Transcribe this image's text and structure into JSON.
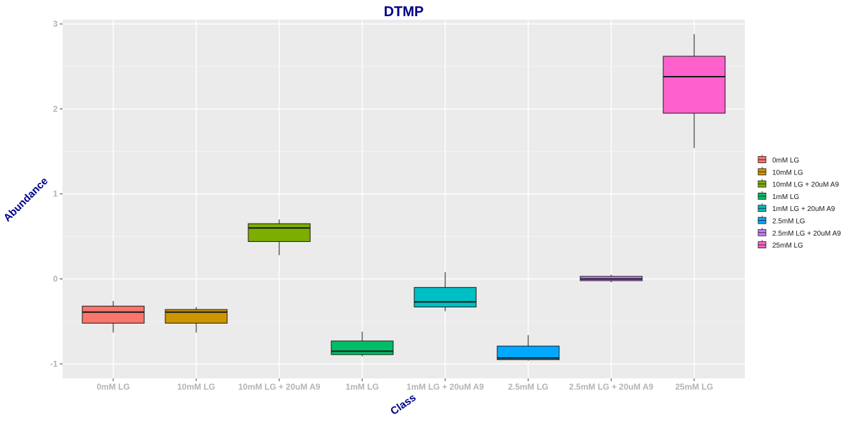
{
  "chart_data": {
    "type": "boxplot",
    "title": "DTMP",
    "xlabel": "Class",
    "ylabel": "Abundance",
    "ylim": [
      -1.17,
      3.05
    ],
    "yticks": [
      -1,
      0,
      1,
      2,
      3
    ],
    "grid": true,
    "legend_position": "right",
    "categories": [
      "0mM LG",
      "10mM LG",
      "10mM LG + 20uM A9",
      "1mM LG",
      "1mM LG + 20uM A9",
      "2.5mM LG",
      "2.5mM LG + 20uM A9",
      "25mM LG"
    ],
    "series": [
      {
        "name": "0mM LG",
        "color": "#F8766D",
        "min": -0.63,
        "q1": -0.52,
        "median": -0.39,
        "q3": -0.32,
        "max": -0.26
      },
      {
        "name": "10mM LG",
        "color": "#CD9600",
        "min": -0.63,
        "q1": -0.52,
        "median": -0.39,
        "q3": -0.36,
        "max": -0.33
      },
      {
        "name": "10mM LG + 20uM A9",
        "color": "#7CAE00",
        "min": 0.28,
        "q1": 0.44,
        "median": 0.6,
        "q3": 0.65,
        "max": 0.7
      },
      {
        "name": "1mM LG",
        "color": "#00BE67",
        "min": -0.91,
        "q1": -0.89,
        "median": -0.85,
        "q3": -0.73,
        "max": -0.62
      },
      {
        "name": "1mM LG + 20uM A9",
        "color": "#00BFC4",
        "min": -0.38,
        "q1": -0.33,
        "median": -0.27,
        "q3": -0.1,
        "max": 0.08
      },
      {
        "name": "2.5mM LG",
        "color": "#00A9FF",
        "min": -0.96,
        "q1": -0.95,
        "median": -0.93,
        "q3": -0.79,
        "max": -0.66
      },
      {
        "name": "2.5mM LG + 20uM A9",
        "color": "#C77CFF",
        "min": -0.04,
        "q1": -0.02,
        "median": 0.0,
        "q3": 0.03,
        "max": 0.05
      },
      {
        "name": "25mM LG",
        "color": "#FF61CC",
        "min": 1.54,
        "q1": 1.95,
        "median": 2.38,
        "q3": 2.62,
        "max": 2.88
      }
    ]
  }
}
